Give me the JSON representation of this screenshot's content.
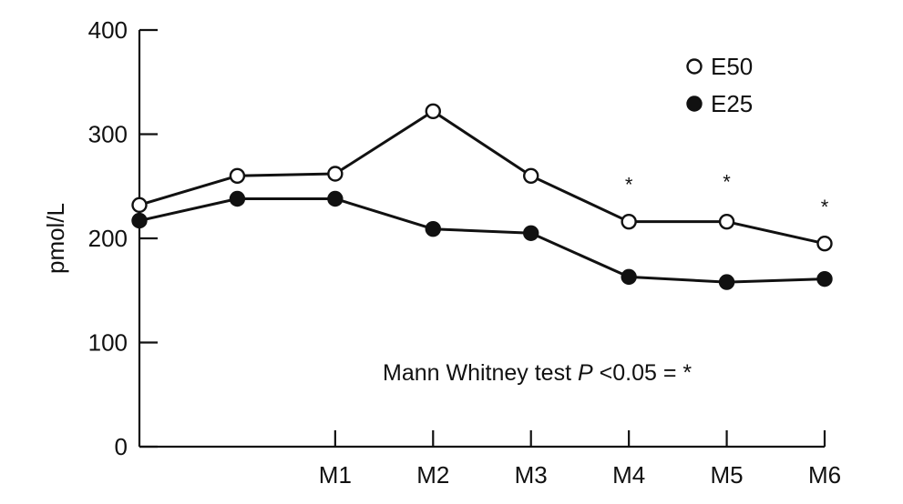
{
  "chart_data": {
    "type": "line",
    "title": "",
    "xlabel": "",
    "ylabel": "pmol/L",
    "ylim": [
      0,
      400
    ],
    "yticks": [
      0,
      100,
      200,
      300,
      400
    ],
    "grid": false,
    "legend_position": "top-right",
    "x_positions": 8,
    "categories": [
      "",
      "",
      "M1",
      "M2",
      "M3",
      "M4",
      "M5",
      "M6"
    ],
    "series": [
      {
        "name": "E50",
        "marker": "open-circle",
        "color": "#111111",
        "values": [
          232,
          260,
          262,
          322,
          260,
          216,
          216,
          195
        ]
      },
      {
        "name": "E25",
        "marker": "filled-circle",
        "color": "#111111",
        "values": [
          217,
          238,
          238,
          209,
          205,
          163,
          158,
          161
        ]
      }
    ],
    "significance_marks": [
      {
        "category_index": 5,
        "y": 257,
        "symbol": "*"
      },
      {
        "category_index": 6,
        "y": 260,
        "symbol": "*"
      },
      {
        "category_index": 7,
        "y": 236,
        "symbol": "*"
      }
    ],
    "annotation": {
      "text_before": "Mann Whitney test ",
      "italic": "P",
      "text_after": " <0.05 = *"
    }
  }
}
